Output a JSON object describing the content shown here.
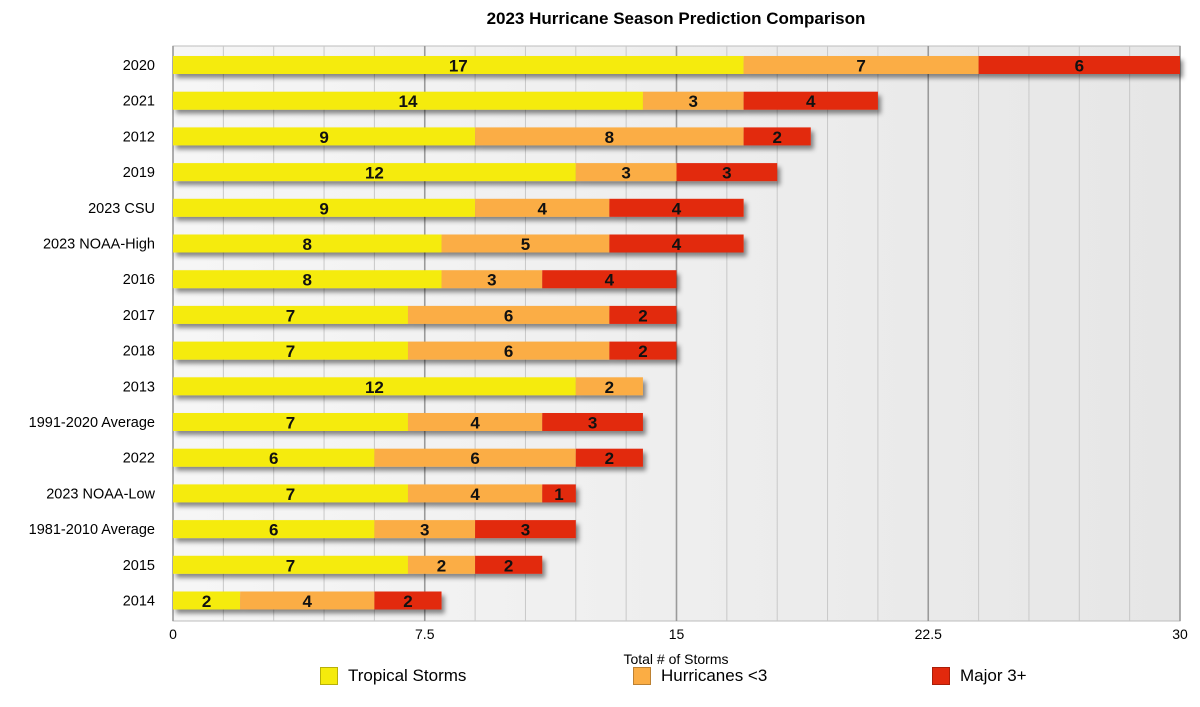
{
  "chart_data": {
    "type": "bar",
    "orientation": "horizontal",
    "stacked": true,
    "title": "2023 Hurricane Season Prediction Comparison",
    "xlabel": "Total # of Storms",
    "ylabel": "",
    "xlim": [
      0,
      30
    ],
    "xticks": [
      "0",
      "7.5",
      "15",
      "22.5",
      "30"
    ],
    "grid": true,
    "legend_position": "bottom",
    "categories": [
      "2020",
      "2021",
      "2012",
      "2019",
      "2023 CSU",
      "2023 NOAA-High",
      "2016",
      "2017",
      "2018",
      "2013",
      "1991-2020 Average",
      "2022",
      "2023 NOAA-Low",
      "1981-2010 Average",
      "2015",
      "2014"
    ],
    "series": [
      {
        "name": "Tropical Storms",
        "color": "#f5eb0c",
        "values": [
          17,
          14,
          9,
          12,
          9,
          8,
          8,
          7,
          7,
          12,
          7,
          6,
          7,
          6,
          7,
          2
        ]
      },
      {
        "name": "Hurricanes <3",
        "color": "#fbad44",
        "values": [
          7,
          3,
          8,
          3,
          4,
          5,
          3,
          6,
          6,
          2,
          4,
          6,
          4,
          3,
          2,
          4
        ]
      },
      {
        "name": "Major 3+",
        "color": "#e2290d",
        "values": [
          6,
          4,
          2,
          3,
          4,
          4,
          4,
          2,
          2,
          0,
          3,
          2,
          1,
          3,
          2,
          2
        ]
      }
    ]
  }
}
